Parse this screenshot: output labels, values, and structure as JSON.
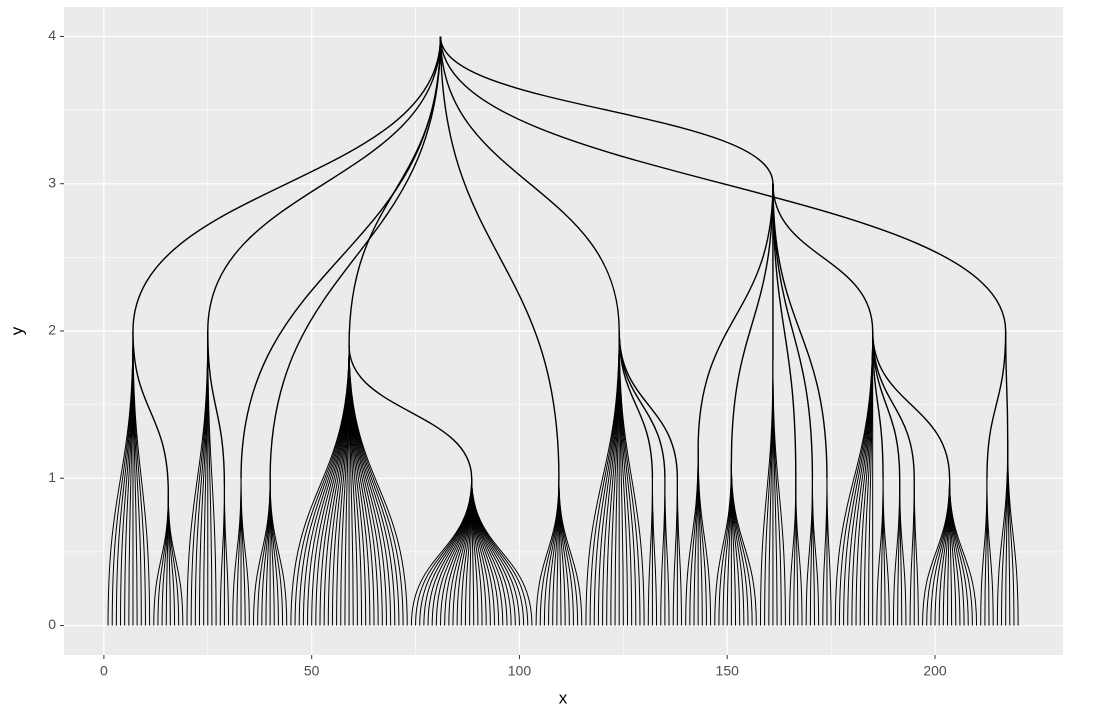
{
  "chart_data": {
    "type": "dendrogram",
    "xlabel": "x",
    "ylabel": "y",
    "xlim": [
      -9.6,
      230.8
    ],
    "ylim": [
      -0.2,
      4.2
    ],
    "xticks": [
      0,
      50,
      100,
      150,
      200
    ],
    "yticks": [
      0,
      1,
      2,
      3,
      4
    ],
    "grid": true,
    "color": "#000000",
    "nodes": [
      {
        "x": 81,
        "y": 4,
        "parent": null
      },
      {
        "x": 7,
        "y": 2,
        "parent": 0
      },
      {
        "x": 15.5,
        "y": 0.9,
        "parent": 1
      },
      {
        "x": 25,
        "y": 2,
        "parent": 0
      },
      {
        "x": 29,
        "y": 0.95,
        "parent": 3
      },
      {
        "x": 33,
        "y": 1,
        "parent": 0
      },
      {
        "x": 40,
        "y": 1,
        "parent": 0
      },
      {
        "x": 59,
        "y": 1.9,
        "parent": 0
      },
      {
        "x": 88.5,
        "y": 1,
        "parent": 7
      },
      {
        "x": 109.5,
        "y": 1,
        "parent": 0
      },
      {
        "x": 124,
        "y": 2,
        "parent": 0
      },
      {
        "x": 132,
        "y": 1,
        "parent": 10
      },
      {
        "x": 135,
        "y": 1,
        "parent": 10
      },
      {
        "x": 138,
        "y": 1,
        "parent": 10
      },
      {
        "x": 161,
        "y": 3,
        "parent": 0
      },
      {
        "x": 143,
        "y": 1.2,
        "parent": 14
      },
      {
        "x": 151,
        "y": 1.1,
        "parent": 14
      },
      {
        "x": 161,
        "y": 1.8,
        "parent": 14
      },
      {
        "x": 166.5,
        "y": 1,
        "parent": 14
      },
      {
        "x": 170.5,
        "y": 1,
        "parent": 14
      },
      {
        "x": 174,
        "y": 1,
        "parent": 14
      },
      {
        "x": 185,
        "y": 2,
        "parent": 14
      },
      {
        "x": 187.5,
        "y": 1,
        "parent": 21
      },
      {
        "x": 191.5,
        "y": 1,
        "parent": 21
      },
      {
        "x": 195,
        "y": 1,
        "parent": 21
      },
      {
        "x": 203.5,
        "y": 1,
        "parent": 21
      },
      {
        "x": 217,
        "y": 2,
        "parent": 0
      },
      {
        "x": 212.5,
        "y": 1,
        "parent": 26
      },
      {
        "x": 217.5,
        "y": 1.25,
        "parent": 26
      }
    ],
    "leaf_groups": [
      {
        "parent": 1,
        "y": 0,
        "x": [
          1,
          2,
          3,
          4,
          5,
          6,
          7,
          8,
          9,
          10,
          11
        ]
      },
      {
        "parent": 2,
        "y": 0,
        "x": [
          12,
          13,
          14,
          15,
          16,
          17,
          18,
          19
        ]
      },
      {
        "parent": 3,
        "y": 0,
        "x": [
          20,
          21,
          22,
          23,
          24,
          25,
          26,
          27
        ]
      },
      {
        "parent": 4,
        "y": 0,
        "x": [
          28,
          29,
          30
        ]
      },
      {
        "parent": 5,
        "y": 0,
        "x": [
          31,
          32,
          33,
          34,
          35
        ]
      },
      {
        "parent": 6,
        "y": 0,
        "x": [
          36,
          37,
          38,
          39,
          40,
          41,
          42,
          43,
          44
        ]
      },
      {
        "parent": 7,
        "y": 0,
        "x": [
          45,
          46,
          47,
          48,
          49,
          50,
          51,
          52,
          53,
          54,
          55,
          56,
          57,
          58,
          59,
          60,
          61,
          62,
          63,
          64,
          65,
          66,
          67,
          68,
          69,
          70,
          71,
          72,
          73
        ]
      },
      {
        "parent": 8,
        "y": 0,
        "x": [
          74,
          75,
          76,
          77,
          78,
          79,
          80,
          81,
          82,
          83,
          84,
          85,
          86,
          87,
          88,
          89,
          90,
          91,
          92,
          93,
          94,
          95,
          96,
          97,
          98,
          99,
          100,
          101,
          102,
          103
        ]
      },
      {
        "parent": 9,
        "y": 0,
        "x": [
          104,
          105,
          106,
          107,
          108,
          109,
          110,
          111,
          112,
          113,
          114,
          115
        ]
      },
      {
        "parent": 10,
        "y": 0,
        "x": [
          116,
          117,
          118,
          119,
          120,
          121,
          122,
          123,
          124,
          125,
          126,
          127,
          128,
          129,
          130
        ]
      },
      {
        "parent": 11,
        "y": 0,
        "x": [
          131,
          132,
          133
        ]
      },
      {
        "parent": 12,
        "y": 0,
        "x": [
          134,
          135,
          136
        ]
      },
      {
        "parent": 13,
        "y": 0,
        "x": [
          137,
          138,
          139
        ]
      },
      {
        "parent": 15,
        "y": 0,
        "x": [
          140,
          141,
          142,
          143,
          144,
          145,
          146
        ]
      },
      {
        "parent": 16,
        "y": 0,
        "x": [
          147,
          148,
          149,
          150,
          151,
          152,
          153,
          154,
          155,
          156,
          157
        ]
      },
      {
        "parent": 17,
        "y": 0,
        "x": [
          158,
          159,
          160,
          161,
          162,
          163,
          164
        ]
      },
      {
        "parent": 18,
        "y": 0,
        "x": [
          165,
          166,
          167,
          168
        ]
      },
      {
        "parent": 19,
        "y": 0,
        "x": [
          169,
          170,
          171,
          172
        ]
      },
      {
        "parent": 20,
        "y": 0,
        "x": [
          173,
          174,
          175
        ]
      },
      {
        "parent": 21,
        "y": 0,
        "x": [
          176,
          177,
          178,
          179,
          180,
          181,
          182,
          183,
          184,
          185
        ]
      },
      {
        "parent": 22,
        "y": 0,
        "x": [
          186,
          187,
          188,
          189
        ]
      },
      {
        "parent": 23,
        "y": 0,
        "x": [
          190,
          191,
          192,
          193
        ]
      },
      {
        "parent": 24,
        "y": 0,
        "x": [
          194,
          195,
          196
        ]
      },
      {
        "parent": 25,
        "y": 0,
        "x": [
          197,
          198,
          199,
          200,
          201,
          202,
          203,
          204,
          205,
          206,
          207,
          208,
          209,
          210
        ]
      },
      {
        "parent": 27,
        "y": 0,
        "x": [
          211,
          212,
          213,
          214
        ]
      },
      {
        "parent": 28,
        "y": 0,
        "x": [
          215,
          216,
          217,
          218,
          219,
          220
        ]
      }
    ]
  }
}
